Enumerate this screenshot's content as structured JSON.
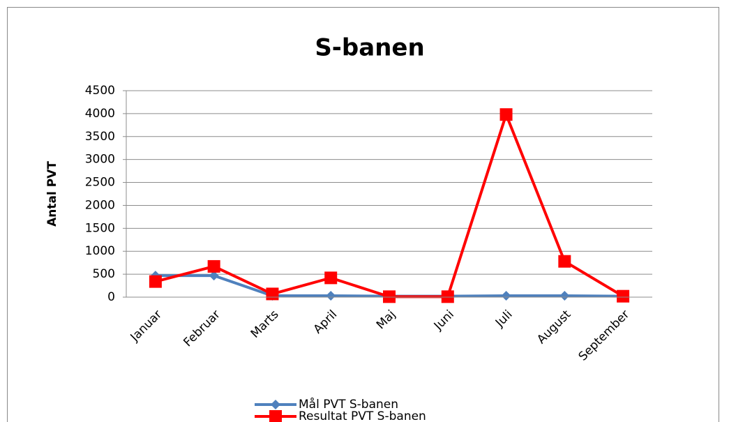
{
  "chart_data": {
    "type": "line",
    "title": "S-banen",
    "y_label": "Antal PVT",
    "categories": [
      "Januar",
      "Februar",
      "Marts",
      "April",
      "Maj",
      "Juni",
      "Juli",
      "August",
      "September"
    ],
    "series": [
      {
        "name": "Mål PVT S-banen",
        "color": "#4f81bd",
        "marker": "diamond",
        "values": [
          470,
          470,
          30,
          30,
          20,
          20,
          30,
          30,
          20
        ]
      },
      {
        "name": "Resultat PVT S-banen",
        "color": "#ff0000",
        "marker": "square",
        "values": [
          340,
          670,
          70,
          420,
          10,
          10,
          3980,
          780,
          20
        ]
      }
    ],
    "ylim": [
      0,
      4500
    ],
    "yticks": [
      0,
      500,
      1000,
      1500,
      2000,
      2500,
      3000,
      3500,
      4000,
      4500
    ],
    "grid": true,
    "legend": "bottom"
  }
}
